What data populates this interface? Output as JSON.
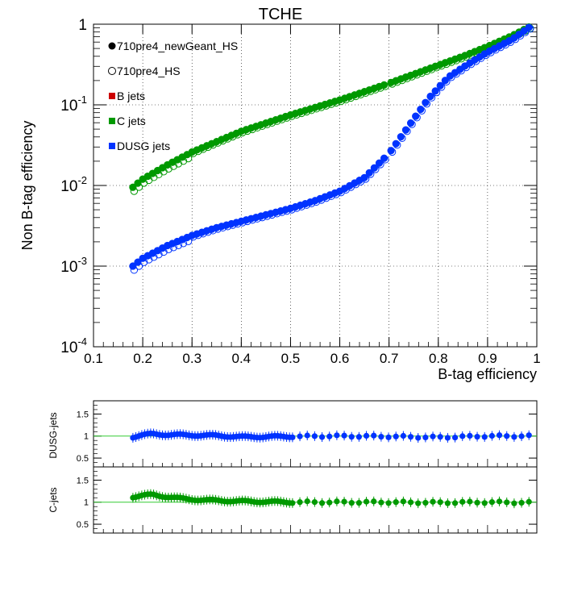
{
  "chart_data": [
    {
      "type": "scatter",
      "title": "TCHE",
      "xlabel": "B-tag efficiency",
      "ylabel": "Non B-tag efficiency",
      "xlim": [
        0.1,
        1.0
      ],
      "ylim": [
        0.0001,
        1
      ],
      "yscale": "log",
      "grid": true,
      "legend_position": "top-left",
      "x_ticks": [
        "0.1",
        "0.2",
        "0.3",
        "0.4",
        "0.5",
        "0.6",
        "0.7",
        "0.8",
        "0.9",
        "1"
      ],
      "y_ticks": [
        {
          "base": "10",
          "exp": "-4"
        },
        {
          "base": "10",
          "exp": "-3"
        },
        {
          "base": "10",
          "exp": "-2"
        },
        {
          "base": "10",
          "exp": "-1"
        },
        {
          "base": "1",
          "exp": ""
        }
      ],
      "legend": [
        {
          "label": "710pre4_newGeant_HS",
          "marker": "filled-circle",
          "color": "#000000"
        },
        {
          "label": "710pre4_HS",
          "marker": "open-circle",
          "color": "#000000"
        },
        {
          "label": "B jets",
          "marker": "square",
          "color": "#cc0000"
        },
        {
          "label": "C jets",
          "marker": "square",
          "color": "#009900"
        },
        {
          "label": "DUSG jets",
          "marker": "square",
          "color": "#0033ff"
        }
      ],
      "series": [
        {
          "name": "C jets",
          "color": "#009900",
          "anchors": [
            [
              0.18,
              0.0095
            ],
            [
              0.2,
              0.012
            ],
            [
              0.25,
              0.018
            ],
            [
              0.3,
              0.026
            ],
            [
              0.35,
              0.035
            ],
            [
              0.4,
              0.047
            ],
            [
              0.5,
              0.075
            ],
            [
              0.6,
              0.115
            ],
            [
              0.7,
              0.185
            ],
            [
              0.8,
              0.31
            ],
            [
              0.85,
              0.4
            ],
            [
              0.9,
              0.53
            ],
            [
              0.95,
              0.72
            ],
            [
              0.985,
              0.93
            ]
          ]
        },
        {
          "name": "DUSG jets",
          "color": "#0033ff",
          "anchors": [
            [
              0.18,
              0.001
            ],
            [
              0.2,
              0.00125
            ],
            [
              0.25,
              0.0018
            ],
            [
              0.3,
              0.0024
            ],
            [
              0.35,
              0.003
            ],
            [
              0.4,
              0.0036
            ],
            [
              0.5,
              0.0052
            ],
            [
              0.55,
              0.0065
            ],
            [
              0.6,
              0.0085
            ],
            [
              0.65,
              0.0125
            ],
            [
              0.7,
              0.025
            ],
            [
              0.74,
              0.055
            ],
            [
              0.78,
              0.12
            ],
            [
              0.82,
              0.22
            ],
            [
              0.86,
              0.32
            ],
            [
              0.9,
              0.45
            ],
            [
              0.95,
              0.65
            ],
            [
              0.985,
              0.92
            ]
          ]
        }
      ]
    },
    {
      "type": "scatter",
      "ylabel": "DUSG-jets",
      "xlim": [
        0.1,
        1.0
      ],
      "ylim": [
        0.3,
        1.8
      ],
      "y_ticks": [
        "0.5",
        "1",
        "1.5"
      ],
      "reference_line": 1,
      "color": "#0033ff",
      "ratio_anchors": [
        [
          0.18,
          0.98
        ],
        [
          0.2,
          1.02
        ],
        [
          0.22,
          1.05
        ],
        [
          0.25,
          1.03
        ],
        [
          0.3,
          1.02
        ],
        [
          0.35,
          1.01
        ],
        [
          0.4,
          0.98
        ],
        [
          0.5,
          0.99
        ],
        [
          0.6,
          1.0
        ],
        [
          0.7,
          0.99
        ],
        [
          0.8,
          0.97
        ],
        [
          0.9,
          1.0
        ],
        [
          0.98,
          1.0
        ]
      ]
    },
    {
      "type": "scatter",
      "ylabel": "C-jets",
      "xlim": [
        0.1,
        1.0
      ],
      "ylim": [
        0.3,
        1.8
      ],
      "y_ticks": [
        "0.5",
        "1",
        "1.5"
      ],
      "reference_line": 1,
      "color": "#009900",
      "ratio_anchors": [
        [
          0.18,
          1.12
        ],
        [
          0.2,
          1.15
        ],
        [
          0.22,
          1.17
        ],
        [
          0.25,
          1.12
        ],
        [
          0.28,
          1.08
        ],
        [
          0.32,
          1.05
        ],
        [
          0.4,
          1.02
        ],
        [
          0.5,
          1.0
        ],
        [
          0.6,
          1.0
        ],
        [
          0.7,
          1.0
        ],
        [
          0.8,
          0.99
        ],
        [
          0.9,
          1.0
        ],
        [
          0.98,
          0.99
        ]
      ]
    }
  ]
}
